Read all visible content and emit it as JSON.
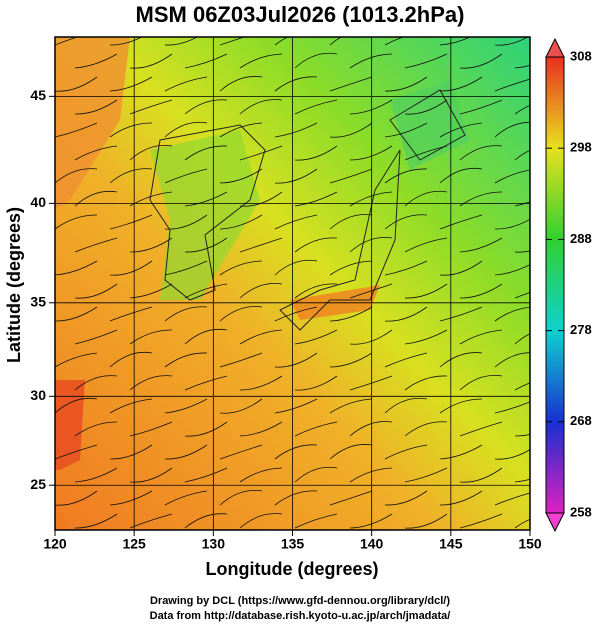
{
  "chart_data": {
    "type": "map",
    "title": "MSM 06Z03Jul2026 (1013.2hPa)",
    "x_label": "Longitude (degrees)",
    "y_label": "Latitude  (degrees)",
    "projection": "mercator",
    "xlim": [
      120,
      150
    ],
    "xticks": [
      120,
      125,
      130,
      135,
      140,
      145,
      150
    ],
    "ylim": [
      22.4,
      47.6
    ],
    "yticks": [
      25,
      30,
      35,
      40,
      45
    ],
    "grid": true,
    "colorbar": {
      "lim": [
        258,
        308
      ],
      "ticks": [
        258,
        268,
        278,
        288,
        298,
        308
      ]
    },
    "credits": [
      "Drawing by DCL (https://www.gfd-dennou.org/library/dcl/)",
      "Data from http://database.rish.kyoto-u.ac.jp/arch/jmadata/"
    ]
  }
}
